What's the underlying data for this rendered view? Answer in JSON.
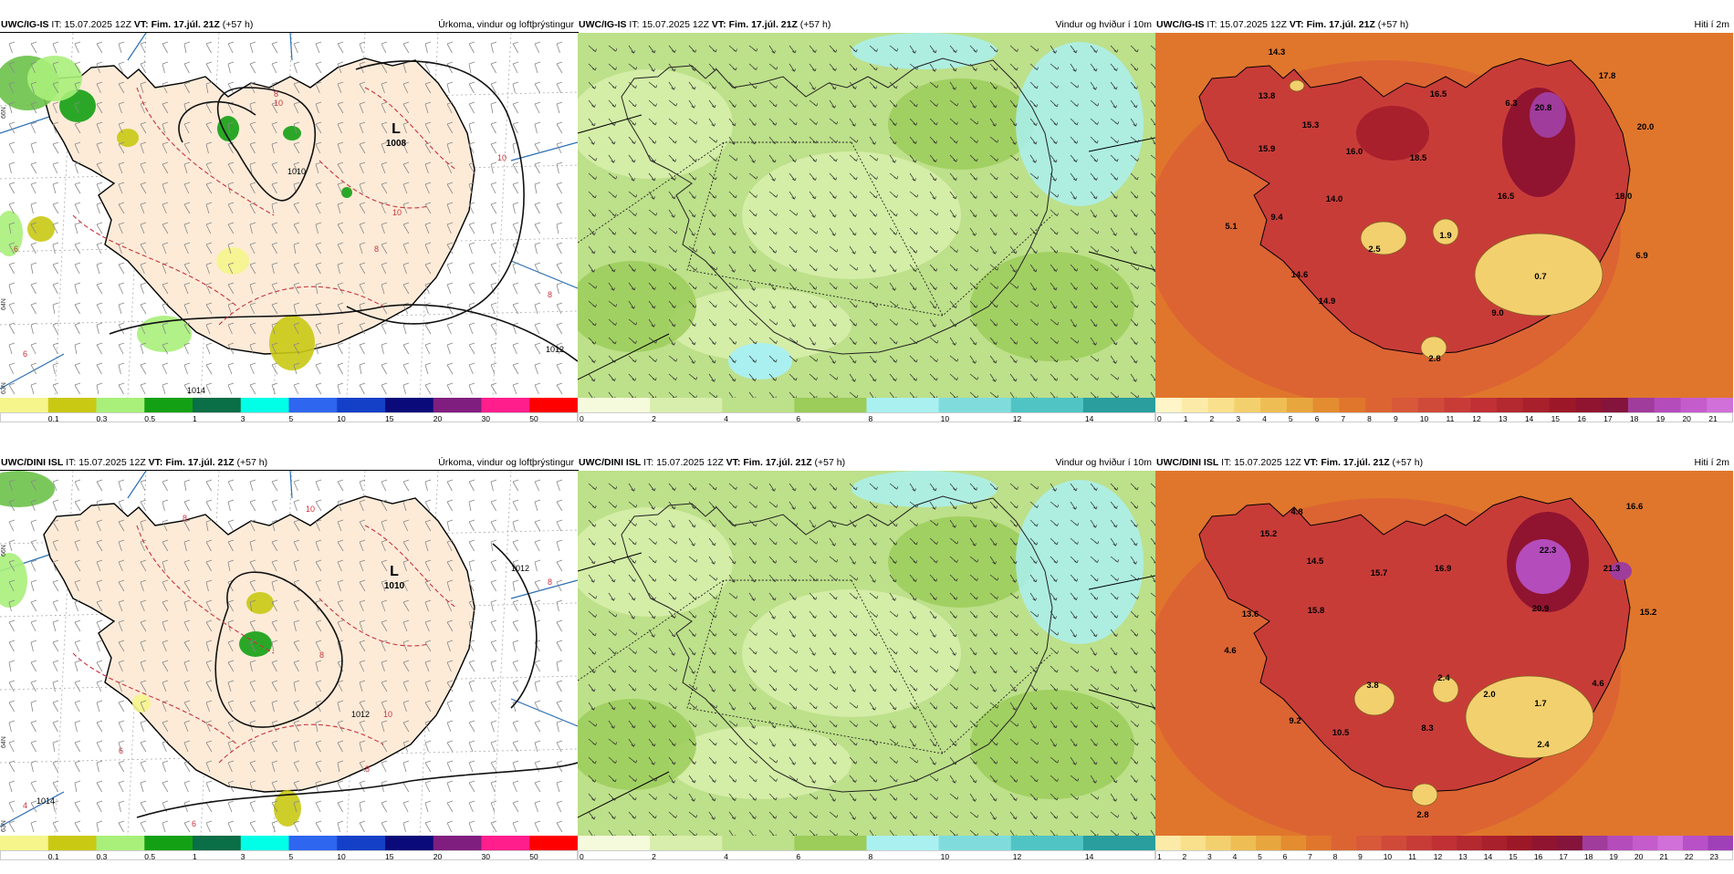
{
  "rows": [
    {
      "model": "UWC/IG-IS",
      "panels": [
        {
          "id": "precip",
          "model": "UWC/IG-IS",
          "it_label": "IT:",
          "it": "15.07.2025 12Z",
          "vt_label": "VT:",
          "vt": "Fim. 17.júl. 21Z",
          "lead": "(+57 h)",
          "title": "Úrkoma, vindur og loftþrýstingur",
          "low": {
            "letter": "L",
            "pressure": "1008"
          },
          "isobar_labels": [
            "1010",
            "1012",
            "1014"
          ],
          "dashed_labels": [
            "6",
            "8",
            "10",
            "10",
            "8",
            "6",
            "8",
            "10"
          ],
          "lat_labels": [
            "66N",
            "64N",
            "63N"
          ]
        },
        {
          "id": "wind",
          "model": "UWC/IG-IS",
          "it_label": "IT:",
          "it": "15.07.2025 12Z",
          "vt_label": "VT:",
          "vt": "Fim. 17.júl. 21Z",
          "lead": "(+57 h)",
          "title": "Vindur og hviður í 10m"
        },
        {
          "id": "temp",
          "model": "UWC/IG-IS",
          "it_label": "IT:",
          "it": "15.07.2025 12Z",
          "vt_label": "VT:",
          "vt": "Fim. 17.júl. 21Z",
          "lead": "(+57 h)",
          "title": "Hiti í 2m",
          "values": [
            "14.3",
            "13.8",
            "15.9",
            "15.3",
            "16.5",
            "6.3",
            "20.8",
            "17.8",
            "16.0",
            "18.5",
            "20.0",
            "14.0",
            "16.5",
            "18.0",
            "9.4",
            "5.1",
            "2.5",
            "1.9",
            "14.6",
            "0.7",
            "6.9",
            "14.9",
            "9.0",
            "2.8"
          ]
        }
      ]
    },
    {
      "model": "UWC/DINI ISL",
      "panels": [
        {
          "id": "precip",
          "model": "UWC/DINI ISL",
          "it_label": "IT:",
          "it": "15.07.2025 12Z",
          "vt_label": "VT:",
          "vt": "Fim. 17.júl. 21Z",
          "lead": "(+57 h)",
          "title": "Úrkoma, vindur og loftþrýstingur",
          "low": {
            "letter": "L",
            "pressure": "1010"
          },
          "isobar_labels": [
            "1012",
            "1012",
            "1014"
          ],
          "dashed_labels": [
            "10",
            "8",
            "6",
            "8",
            "10",
            "8",
            "6",
            "4",
            "8"
          ],
          "lat_labels": [
            "66N",
            "64N",
            "63N"
          ]
        },
        {
          "id": "wind",
          "model": "UWC/DINI ISL",
          "it_label": "IT:",
          "it": "15.07.2025 12Z",
          "vt_label": "VT:",
          "vt": "Fim. 17.júl. 21Z",
          "lead": "(+57 h)",
          "title": "Vindur og hviður í 10m"
        },
        {
          "id": "temp",
          "model": "UWC/DINI ISL",
          "it_label": "IT:",
          "it": "15.07.2025 12Z",
          "vt_label": "VT:",
          "vt": "Fim. 17.júl. 21Z",
          "lead": "(+57 h)",
          "title": "Hiti í 2m",
          "values": [
            "4.8",
            "16.6",
            "15.2",
            "14.5",
            "15.7",
            "16.9",
            "22.3",
            "21.3",
            "13.6",
            "15.8",
            "20.9",
            "15.2",
            "4.6",
            "3.8",
            "2.4",
            "2.0",
            "1.7",
            "4.6",
            "9.2",
            "10.5",
            "8.3",
            "2.4",
            "2.8"
          ]
        }
      ]
    }
  ],
  "legends": {
    "precip": {
      "labels": [
        "0.1",
        "0.3",
        "0.5",
        "1",
        "3",
        "5",
        "10",
        "15",
        "20",
        "30",
        "50"
      ],
      "colors": [
        "#f5f58c",
        "#c9c914",
        "#a8f07a",
        "#14a014",
        "#0a6e46",
        "#00ffe6",
        "#2e66f0",
        "#1440c8",
        "#0a0a7a",
        "#801e80",
        "#ff1e8c",
        "#ff0000"
      ]
    },
    "wind": {
      "labels": [
        "0",
        "2",
        "4",
        "6",
        "8",
        "10",
        "12",
        "14"
      ],
      "colors": [
        "#f5fadc",
        "#d8eeac",
        "#bde08a",
        "#9ccc5a",
        "#aaf0f0",
        "#80dcdc",
        "#50c4c4",
        "#2a9e9e"
      ]
    },
    "temp_top": {
      "labels": [
        "0",
        "1",
        "2",
        "3",
        "4",
        "5",
        "6",
        "7",
        "8",
        "9",
        "10",
        "11",
        "12",
        "13",
        "14",
        "15",
        "16",
        "17",
        "18",
        "19",
        "20",
        "21"
      ],
      "colors": [
        "#fff5c8",
        "#fceba8",
        "#f8e08c",
        "#f3d06e",
        "#eebe54",
        "#e8a63e",
        "#e48c30",
        "#e0762c",
        "#dc6432",
        "#d8583a",
        "#d04a3a",
        "#c83c38",
        "#c03034",
        "#b42830",
        "#a8202c",
        "#9c1828",
        "#901430",
        "#84143c",
        "#a03c9c",
        "#b44cbc",
        "#c45ccc",
        "#d070d8"
      ]
    },
    "temp_bottom": {
      "labels": [
        "1",
        "2",
        "3",
        "4",
        "5",
        "6",
        "7",
        "8",
        "9",
        "10",
        "11",
        "12",
        "13",
        "14",
        "15",
        "16",
        "17",
        "18",
        "19",
        "20",
        "21",
        "22",
        "23"
      ],
      "colors": [
        "#fceba8",
        "#f8e08c",
        "#f3d06e",
        "#eebe54",
        "#e8a63e",
        "#e48c30",
        "#e0762c",
        "#dc6432",
        "#d8583a",
        "#d04a3a",
        "#c83c38",
        "#c03034",
        "#b42830",
        "#a8202c",
        "#9c1828",
        "#901430",
        "#84143c",
        "#a03c9c",
        "#b44cbc",
        "#c45ccc",
        "#d070d8",
        "#b850c8",
        "#a040b8"
      ]
    }
  }
}
